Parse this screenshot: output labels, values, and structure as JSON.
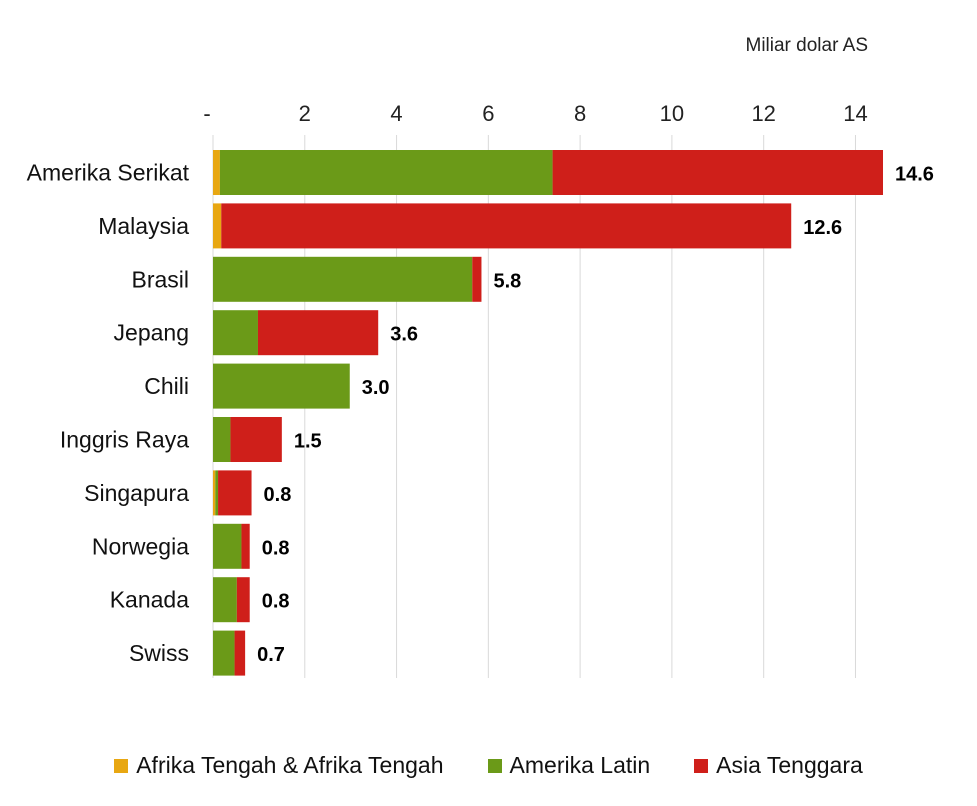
{
  "chart_data": {
    "type": "bar",
    "orientation": "horizontal",
    "stacked": true,
    "unit_label": "Miliar dolar AS",
    "xlim": [
      0,
      14.6
    ],
    "ticks": [
      {
        "value": 0,
        "label": "-"
      },
      {
        "value": 2,
        "label": "2"
      },
      {
        "value": 4,
        "label": "4"
      },
      {
        "value": 6,
        "label": "6"
      },
      {
        "value": 8,
        "label": "8"
      },
      {
        "value": 10,
        "label": "10"
      },
      {
        "value": 12,
        "label": "12"
      },
      {
        "value": 14,
        "label": "14"
      }
    ],
    "grid": true,
    "legend_position": "bottom",
    "categories": [
      "Amerika Serikat",
      "Malaysia",
      "Brasil",
      "Jepang",
      "Chili",
      "Inggris Raya",
      "Singapura",
      "Norwegia",
      "Kanada",
      "Swiss"
    ],
    "series": [
      {
        "name": "Afrika Tengah & Afrika Tengah",
        "color": "#e8a712",
        "values": [
          0.15,
          0.18,
          0,
          0,
          0,
          0,
          0.05,
          0,
          0,
          0
        ]
      },
      {
        "name": "Amerika Latin",
        "color": "#6b9a18",
        "values": [
          7.25,
          0,
          5.65,
          0.98,
          2.98,
          0.38,
          0.06,
          0.62,
          0.52,
          0.47
        ]
      },
      {
        "name": "Asia Tenggara",
        "color": "#cf1f1a",
        "values": [
          7.2,
          12.42,
          0.2,
          2.62,
          0,
          1.12,
          0.73,
          0.18,
          0.28,
          0.23
        ]
      }
    ],
    "totals": [
      "14.6",
      "12.6",
      "5.8",
      "3.6",
      "3.0",
      "1.5",
      "0.8",
      "0.8",
      "0.8",
      "0.7"
    ]
  }
}
